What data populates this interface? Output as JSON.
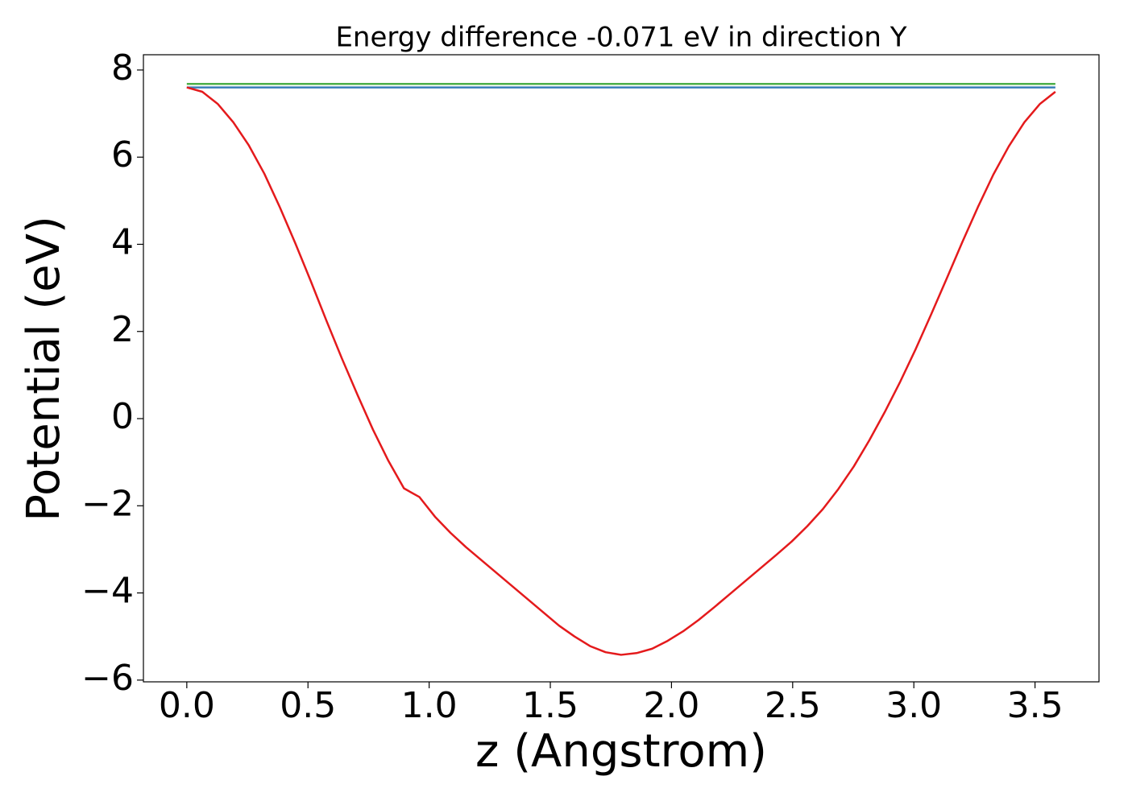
{
  "chart_data": {
    "type": "line",
    "title": "Energy difference -0.071 eV in direction Y",
    "xlabel": "z (Angstrom)",
    "ylabel": "Potential (eV)",
    "xlim": [
      -0.179,
      3.764
    ],
    "ylim": [
      -6.04,
      8.35
    ],
    "xticks": [
      {
        "value": 0,
        "label": "0.0"
      },
      0.5,
      {
        "value": 1,
        "label": "1.0"
      },
      1.5,
      {
        "value": 2,
        "label": "2.0"
      },
      2.5,
      {
        "value": 3,
        "label": "3.0"
      },
      3.5
    ],
    "yticks": [
      {
        "value": -6,
        "label": "−6"
      },
      {
        "value": -4,
        "label": "−4"
      },
      {
        "value": -2,
        "label": "−2"
      },
      0,
      2,
      4,
      6,
      8
    ],
    "series": [
      {
        "color": "#4daf4a",
        "x": [
          0,
          3.584
        ],
        "values": [
          7.68,
          7.68
        ]
      },
      {
        "color": "#377eb8",
        "x": [
          0,
          3.584
        ],
        "values": [
          7.6,
          7.6
        ]
      },
      {
        "color": "#e41a1c",
        "x": [
          0,
          0.064,
          0.128,
          0.192,
          0.256,
          0.32,
          0.384,
          0.448,
          0.512,
          0.576,
          0.64,
          0.704,
          0.768,
          0.832,
          0.896,
          0.96,
          1.024,
          1.088,
          1.152,
          1.216,
          1.28,
          1.344,
          1.408,
          1.472,
          1.536,
          1.6,
          1.664,
          1.728,
          1.792,
          1.856,
          1.92,
          1.984,
          2.048,
          2.112,
          2.176,
          2.24,
          2.304,
          2.368,
          2.432,
          2.496,
          2.56,
          2.624,
          2.688,
          2.752,
          2.816,
          2.88,
          2.944,
          3.008,
          3.072,
          3.136,
          3.2,
          3.264,
          3.328,
          3.392,
          3.456,
          3.52,
          3.584
        ],
        "values": [
          7.6,
          7.5,
          7.22,
          6.8,
          6.27,
          5.62,
          4.85,
          4.02,
          3.15,
          2.25,
          1.38,
          0.55,
          -0.25,
          -0.97,
          -1.6,
          -1.8,
          -2.25,
          -2.62,
          -2.95,
          -3.25,
          -3.55,
          -3.85,
          -4.15,
          -4.45,
          -4.75,
          -5.0,
          -5.22,
          -5.36,
          -5.42,
          -5.38,
          -5.28,
          -5.1,
          -4.88,
          -4.62,
          -4.33,
          -4.03,
          -3.73,
          -3.43,
          -3.13,
          -2.82,
          -2.47,
          -2.08,
          -1.62,
          -1.1,
          -0.5,
          0.15,
          0.85,
          1.6,
          2.4,
          3.22,
          4.05,
          4.85,
          5.6,
          6.25,
          6.8,
          7.22,
          7.5
        ]
      }
    ]
  }
}
